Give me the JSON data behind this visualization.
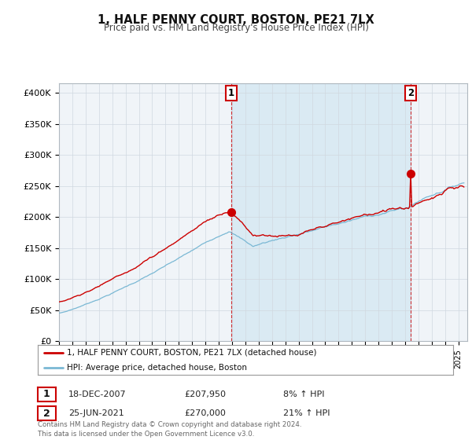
{
  "title": "1, HALF PENNY COURT, BOSTON, PE21 7LX",
  "subtitle": "Price paid vs. HM Land Registry's House Price Index (HPI)",
  "ylabel_ticks": [
    "£0",
    "£50K",
    "£100K",
    "£150K",
    "£200K",
    "£250K",
    "£300K",
    "£350K",
    "£400K"
  ],
  "ytick_values": [
    0,
    50000,
    100000,
    150000,
    200000,
    250000,
    300000,
    350000,
    400000
  ],
  "ylim": [
    0,
    415000
  ],
  "hpi_color": "#7ab8d4",
  "hpi_fill_color": "#cce4f0",
  "price_color": "#cc0000",
  "vline_color": "#cc0000",
  "sale1_date_str": "18-DEC-2007",
  "sale1_price_val": 207950,
  "sale1_price": "£207,950",
  "sale1_hpi": "8% ↑ HPI",
  "sale2_date_str": "25-JUN-2021",
  "sale2_price_val": 270000,
  "sale2_price": "£270,000",
  "sale2_hpi": "21% ↑ HPI",
  "legend1": "1, HALF PENNY COURT, BOSTON, PE21 7LX (detached house)",
  "legend2": "HPI: Average price, detached house, Boston",
  "footer": "Contains HM Land Registry data © Crown copyright and database right 2024.\nThis data is licensed under the Open Government Licence v3.0.",
  "bg_color": "#ffffff",
  "plot_bg_color": "#f0f4f8"
}
